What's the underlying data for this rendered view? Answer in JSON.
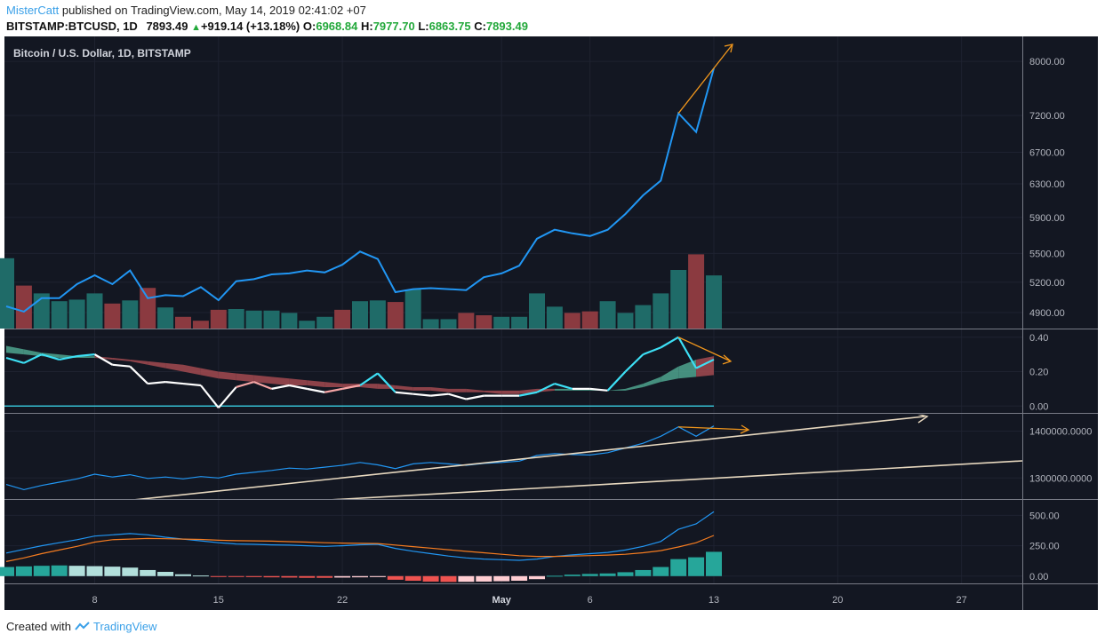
{
  "header": {
    "author": "MisterCatt",
    "published_text": "published on TradingView.com, May 14, 2019 02:41:02 +07",
    "symbol": "BITSTAMP:BTCUSD, 1D",
    "last": "7893.49",
    "change": "+919.14 (+13.18%)",
    "o_label": "O:",
    "o_value": "6968.84",
    "h_label": "H:",
    "h_value": "7977.70",
    "l_label": "L:",
    "l_value": "6863.75",
    "c_label": "C:",
    "c_value": "7893.49"
  },
  "footer": {
    "created_with": "Created with",
    "brand": "TradingView"
  },
  "colors": {
    "background": "#131722",
    "price_line": "#2196f3",
    "volume_up": "#1f6b68",
    "volume_down": "#8b3a40",
    "ichimoku_bull": "#4fa58e",
    "ichimoku_bear": "#a34a50",
    "indicator_cyan": "#3de0f5",
    "trend_line": "#e7d8bf",
    "arrow": "#f0961c",
    "macd_line": "#2196f3",
    "signal_line": "#f57c20",
    "hist_up_strong": "#26a69a",
    "hist_up_weak": "#b2dfdb",
    "hist_down_strong": "#ef5350",
    "hist_down_weak": "#ffcdd2"
  },
  "chart_data": [
    {
      "type": "line",
      "title": "Bitcoin / U.S. Dollar, 1D, BITSTAMP",
      "x_ticks": [
        "8",
        "15",
        "22",
        "May",
        "6",
        "13",
        "20",
        "27"
      ],
      "y_ticks": [
        "8000.00",
        "7200.00",
        "6700.00",
        "6300.00",
        "5900.00",
        "5500.00",
        "5200.00",
        "4900.00"
      ],
      "scale": "log",
      "dates": [
        "2019-04-03",
        "2019-04-04",
        "2019-04-05",
        "2019-04-06",
        "2019-04-07",
        "2019-04-08",
        "2019-04-09",
        "2019-04-10",
        "2019-04-11",
        "2019-04-12",
        "2019-04-13",
        "2019-04-14",
        "2019-04-15",
        "2019-04-16",
        "2019-04-17",
        "2019-04-18",
        "2019-04-19",
        "2019-04-20",
        "2019-04-21",
        "2019-04-22",
        "2019-04-23",
        "2019-04-24",
        "2019-04-25",
        "2019-04-26",
        "2019-04-27",
        "2019-04-28",
        "2019-04-29",
        "2019-04-30",
        "2019-05-01",
        "2019-05-02",
        "2019-05-03",
        "2019-05-04",
        "2019-05-05",
        "2019-05-06",
        "2019-05-07",
        "2019-05-08",
        "2019-05-09",
        "2019-05-10",
        "2019-05-11",
        "2019-05-12",
        "2019-05-13"
      ],
      "close": [
        4960,
        4910,
        5040,
        5040,
        5180,
        5270,
        5180,
        5320,
        5040,
        5070,
        5060,
        5150,
        5020,
        5210,
        5230,
        5280,
        5290,
        5320,
        5300,
        5380,
        5520,
        5440,
        5100,
        5130,
        5140,
        5130,
        5120,
        5250,
        5290,
        5370,
        5660,
        5760,
        5720,
        5690,
        5760,
        5940,
        6160,
        6340,
        7230,
        6970,
        7893
      ],
      "volume_dir": [
        "up",
        "down",
        "up",
        "up",
        "up",
        "up",
        "down",
        "up",
        "down",
        "up",
        "down",
        "down",
        "down",
        "up",
        "up",
        "up",
        "up",
        "up",
        "up",
        "down",
        "up",
        "up",
        "down",
        "up",
        "up",
        "up",
        "down",
        "down",
        "up",
        "up",
        "up",
        "up",
        "down",
        "down",
        "up",
        "up",
        "up",
        "up",
        "up",
        "down",
        "up"
      ],
      "volume_rel": [
        0.9,
        0.55,
        0.45,
        0.35,
        0.37,
        0.45,
        0.32,
        0.36,
        0.52,
        0.27,
        0.15,
        0.1,
        0.24,
        0.25,
        0.23,
        0.23,
        0.2,
        0.1,
        0.15,
        0.24,
        0.35,
        0.36,
        0.34,
        0.5,
        0.12,
        0.12,
        0.2,
        0.17,
        0.15,
        0.15,
        0.45,
        0.28,
        0.2,
        0.22,
        0.35,
        0.2,
        0.3,
        0.45,
        0.75,
        0.95,
        0.68
      ]
    },
    {
      "type": "line",
      "title": "",
      "y_ticks": [
        "0.40",
        "0.20",
        "0.00"
      ],
      "ylim": [
        -0.04,
        0.44
      ],
      "indicator": [
        0.28,
        0.25,
        0.3,
        0.27,
        0.29,
        0.3,
        0.24,
        0.23,
        0.13,
        0.14,
        0.13,
        0.12,
        -0.01,
        0.11,
        0.14,
        0.1,
        0.12,
        0.1,
        0.08,
        0.1,
        0.12,
        0.19,
        0.08,
        0.07,
        0.06,
        0.07,
        0.04,
        0.06,
        0.06,
        0.06,
        0.08,
        0.13,
        0.1,
        0.1,
        0.09,
        0.2,
        0.3,
        0.34,
        0.4,
        0.22,
        0.27
      ],
      "band_a": [
        0.35,
        0.33,
        0.31,
        0.3,
        0.29,
        0.29,
        0.28,
        0.27,
        0.26,
        0.25,
        0.24,
        0.22,
        0.2,
        0.19,
        0.18,
        0.17,
        0.16,
        0.15,
        0.14,
        0.13,
        0.13,
        0.13,
        0.12,
        0.11,
        0.11,
        0.1,
        0.1,
        0.09,
        0.09,
        0.09,
        0.1,
        0.1,
        0.1,
        0.1,
        0.09,
        0.1,
        0.13,
        0.17,
        0.23,
        0.27,
        0.29
      ],
      "band_b": [
        0.31,
        0.3,
        0.29,
        0.28,
        0.28,
        0.28,
        0.27,
        0.26,
        0.24,
        0.22,
        0.2,
        0.18,
        0.16,
        0.15,
        0.14,
        0.13,
        0.12,
        0.12,
        0.11,
        0.11,
        0.11,
        0.1,
        0.1,
        0.09,
        0.09,
        0.08,
        0.08,
        0.08,
        0.07,
        0.07,
        0.08,
        0.09,
        0.09,
        0.09,
        0.09,
        0.09,
        0.11,
        0.14,
        0.16,
        0.17,
        0.18
      ],
      "baseline": 0.0
    },
    {
      "type": "line",
      "title": "",
      "y_ticks": [
        "1400000.0000",
        "1300000.0000"
      ],
      "ylim": [
        1255000,
        1435000
      ],
      "values": [
        1286000,
        1275000,
        1284000,
        1291000,
        1298000,
        1308000,
        1302000,
        1307000,
        1299000,
        1302000,
        1298000,
        1303000,
        1300000,
        1308000,
        1312000,
        1316000,
        1321000,
        1319000,
        1323000,
        1327000,
        1333000,
        1328000,
        1320000,
        1330000,
        1333000,
        1330000,
        1327000,
        1331000,
        1333000,
        1336000,
        1348000,
        1352000,
        1350000,
        1349000,
        1354000,
        1364000,
        1374000,
        1389000,
        1409000,
        1389000,
        1411000
      ]
    },
    {
      "type": "line",
      "title": "",
      "y_ticks": [
        "500.00",
        "250.00",
        "0.00"
      ],
      "ylim": [
        -60,
        620
      ],
      "macd": [
        190,
        220,
        250,
        275,
        300,
        330,
        340,
        350,
        340,
        320,
        305,
        290,
        275,
        265,
        262,
        257,
        255,
        250,
        245,
        250,
        258,
        262,
        228,
        205,
        185,
        165,
        150,
        140,
        135,
        130,
        140,
        162,
        175,
        185,
        195,
        215,
        245,
        285,
        385,
        430,
        530
      ],
      "signal": [
        120,
        150,
        185,
        215,
        245,
        280,
        300,
        305,
        310,
        308,
        305,
        302,
        295,
        292,
        290,
        288,
        284,
        280,
        275,
        272,
        270,
        268,
        256,
        243,
        230,
        217,
        204,
        192,
        180,
        168,
        162,
        162,
        165,
        169,
        173,
        180,
        192,
        210,
        240,
        275,
        335
      ],
      "histogram": [
        75,
        80,
        85,
        88,
        85,
        82,
        78,
        70,
        50,
        35,
        15,
        5,
        -5,
        -6,
        -8,
        -10,
        -12,
        -14,
        -14,
        -12,
        -10,
        -8,
        -30,
        -38,
        -45,
        -48,
        -47,
        -45,
        -42,
        -38,
        -25,
        3,
        12,
        18,
        22,
        32,
        50,
        75,
        140,
        155,
        200
      ]
    }
  ]
}
